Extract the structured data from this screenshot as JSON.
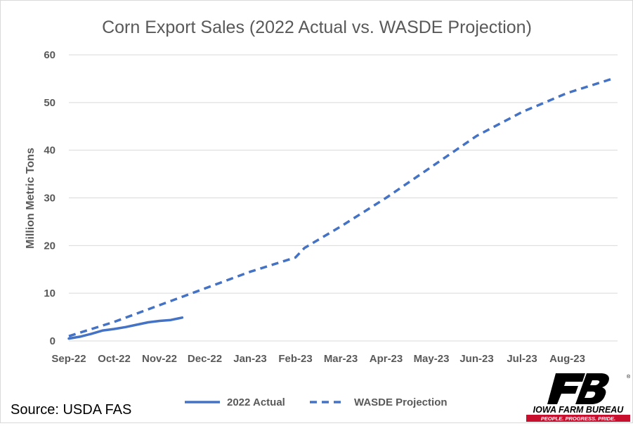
{
  "source_text": "Source: USDA FAS",
  "logo": {
    "name": "IOWA FARM BUREAU",
    "tagline": "PEOPLE. PROGRESS. PRIDE.",
    "brand_color": "#c8102e",
    "mark_color": "#000000"
  },
  "chart_data": {
    "type": "line",
    "title": "Corn Export Sales (2022 Actual vs. WASDE Projection)",
    "xlabel": "",
    "ylabel": "Million Metric Tons",
    "ylim": [
      0,
      60
    ],
    "yticks": [
      0,
      10,
      20,
      30,
      40,
      50,
      60
    ],
    "categories": [
      "Sep-22",
      "Oct-22",
      "Nov-22",
      "Dec-22",
      "Jan-23",
      "Feb-23",
      "Mar-23",
      "Apr-23",
      "May-23",
      "Jun-23",
      "Jul-23",
      "Aug-23"
    ],
    "grid": true,
    "legend_position": "bottom",
    "series": [
      {
        "name": "2022 Actual",
        "style": "solid",
        "color": "#4472c4",
        "x": [
          0,
          0.25,
          0.5,
          0.75,
          1.0,
          1.25,
          1.5,
          1.75,
          2.0,
          2.25,
          2.5
        ],
        "y": [
          0.5,
          0.9,
          1.5,
          2.2,
          2.5,
          2.9,
          3.4,
          3.9,
          4.2,
          4.4,
          4.9
        ]
      },
      {
        "name": "WASDE Projection",
        "style": "dashed",
        "color": "#4472c4",
        "x": [
          0,
          1,
          2,
          3,
          4,
          5,
          5.2,
          6,
          7,
          8,
          9,
          10,
          11,
          12
        ],
        "y": [
          1.0,
          4.0,
          7.5,
          11.0,
          14.5,
          17.5,
          19.5,
          24.0,
          30.0,
          36.5,
          43.0,
          48.0,
          52.0,
          55.0
        ]
      }
    ]
  }
}
